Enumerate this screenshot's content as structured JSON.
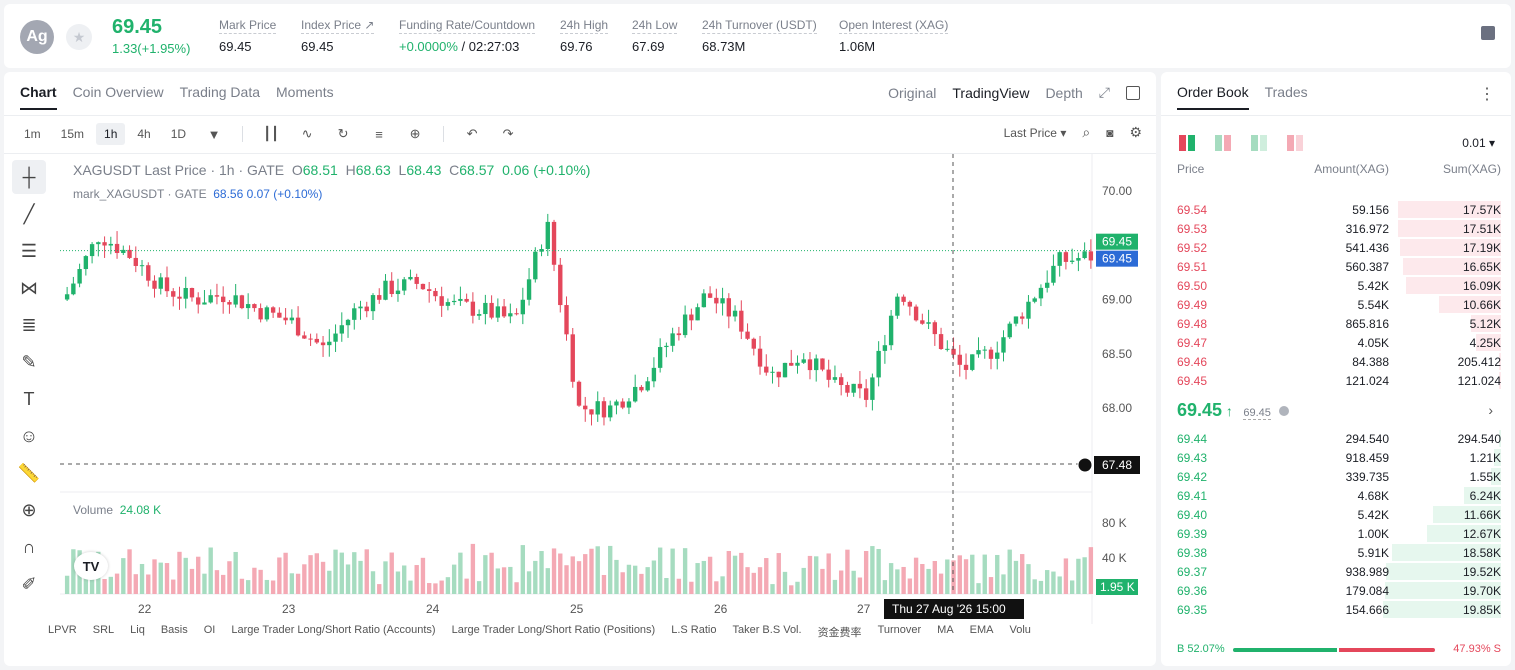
{
  "header": {
    "avatar": "Ag",
    "last_price": "69.45",
    "change": "1.33(+1.95%)",
    "stats": [
      {
        "label": "Mark Price",
        "value": "69.45"
      },
      {
        "label": "Index Price ↗",
        "value": "69.45"
      },
      {
        "label": "Funding Rate/Countdown",
        "value_green": "+0.0000%",
        "value": " / 02:27:03"
      },
      {
        "label": "24h High",
        "value": "69.76"
      },
      {
        "label": "24h Low",
        "value": "67.69"
      },
      {
        "label": "24h Turnover (USDT)",
        "value": "68.73M"
      },
      {
        "label": "Open Interest (XAG)",
        "value": "1.06M"
      }
    ]
  },
  "chart_tabs": [
    "Chart",
    "Coin Overview",
    "Trading Data",
    "Moments"
  ],
  "view_tabs": [
    "Original",
    "TradingView",
    "Depth"
  ],
  "timeframes": [
    "1m",
    "15m",
    "1h",
    "4h",
    "1D"
  ],
  "price_source": "Last Price",
  "legend": {
    "main": "XAGUSDT Last Price · 1h · GATE",
    "o": "68.51",
    "h": "68.63",
    "l": "68.43",
    "c": "68.57",
    "chg": "0.06 (+0.10%)",
    "mark": "mark_XAGUSDT · GATE",
    "mark_val": "68.56 0.07 (+0.10%)",
    "volume_label": "Volume",
    "volume_val": "24.08 K"
  },
  "price_axis": [
    "70.00",
    "69.50",
    "69.00",
    "68.50",
    "68.00"
  ],
  "price_tags": {
    "last": "69.45",
    "mark": "69.45",
    "cross": "67.48",
    "vol": "1.95 K"
  },
  "vol_axis": [
    "80 K",
    "40 K"
  ],
  "date_axis": [
    "22",
    "23",
    "24",
    "25",
    "26",
    "27"
  ],
  "crosshair_time": "Thu 27 Aug '26   15:00",
  "indicators": [
    "LPVR",
    "SRL",
    "Liq",
    "Basis",
    "OI",
    "Large Trader Long/Short Ratio (Accounts)",
    "Large Trader Long/Short Ratio (Positions)",
    "L.S Ratio",
    "Taker B.S Vol.",
    "资金费率",
    "Turnover",
    "MA",
    "EMA",
    "Volu"
  ],
  "orderbook": {
    "tabs": [
      "Order Book",
      "Trades"
    ],
    "precision": "0.01",
    "headers": {
      "price": "Price",
      "amount": "Amount(XAG)",
      "sum": "Sum(XAG)"
    },
    "asks": [
      {
        "price": "69.54",
        "amount": "59.156",
        "sum": "17.57K",
        "depth": 0.86
      },
      {
        "price": "69.53",
        "amount": "316.972",
        "sum": "17.51K",
        "depth": 0.86
      },
      {
        "price": "69.52",
        "amount": "541.436",
        "sum": "17.19K",
        "depth": 0.84
      },
      {
        "price": "69.51",
        "amount": "560.387",
        "sum": "16.65K",
        "depth": 0.82
      },
      {
        "price": "69.50",
        "amount": "5.42K",
        "sum": "16.09K",
        "depth": 0.79
      },
      {
        "price": "69.49",
        "amount": "5.54K",
        "sum": "10.66K",
        "depth": 0.52
      },
      {
        "price": "69.48",
        "amount": "865.816",
        "sum": "5.12K",
        "depth": 0.25
      },
      {
        "price": "69.47",
        "amount": "4.05K",
        "sum": "4.25K",
        "depth": 0.21
      },
      {
        "price": "69.46",
        "amount": "84.388",
        "sum": "205.412",
        "depth": 0.01
      },
      {
        "price": "69.45",
        "amount": "121.024",
        "sum": "121.024",
        "depth": 0.005
      }
    ],
    "mid_price": "69.45",
    "mid_mark": "69.45",
    "bids": [
      {
        "price": "69.44",
        "amount": "294.540",
        "sum": "294.540",
        "depth": 0.015
      },
      {
        "price": "69.43",
        "amount": "918.459",
        "sum": "1.21K",
        "depth": 0.06
      },
      {
        "price": "69.42",
        "amount": "339.735",
        "sum": "1.55K",
        "depth": 0.08
      },
      {
        "price": "69.41",
        "amount": "4.68K",
        "sum": "6.24K",
        "depth": 0.31
      },
      {
        "price": "69.40",
        "amount": "5.42K",
        "sum": "11.66K",
        "depth": 0.57
      },
      {
        "price": "69.39",
        "amount": "1.00K",
        "sum": "12.67K",
        "depth": 0.62
      },
      {
        "price": "69.38",
        "amount": "5.91K",
        "sum": "18.58K",
        "depth": 0.91
      },
      {
        "price": "69.37",
        "amount": "938.989",
        "sum": "19.52K",
        "depth": 0.96
      },
      {
        "price": "69.36",
        "amount": "179.084",
        "sum": "19.70K",
        "depth": 0.97
      },
      {
        "price": "69.35",
        "amount": "154.666",
        "sum": "19.85K",
        "depth": 0.98
      }
    ],
    "buy_ratio": "B 52.07%",
    "sell_ratio": "47.93% S",
    "buy_fraction": 0.5207
  },
  "colors": {
    "up": "#20b26c",
    "down": "#e4475b",
    "up_vol": "#a6dcc0",
    "down_vol": "#f4a9b4"
  }
}
